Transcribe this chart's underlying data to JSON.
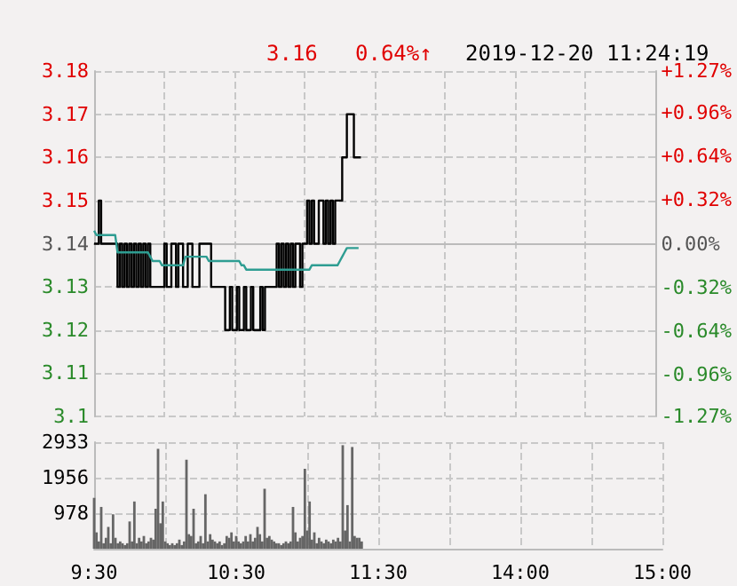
{
  "chart_data": [
    {
      "type": "line",
      "annotations": [
        "3.16",
        "0.64%↑",
        "2019-12-20 11:24:19"
      ],
      "categories": [
        null,
        null,
        null,
        null,
        null,
        null,
        null,
        null,
        null,
        null,
        null,
        null,
        null,
        null,
        null,
        null,
        null,
        null,
        null,
        null,
        null,
        null,
        null,
        null,
        null,
        null,
        null,
        null,
        null,
        null,
        null,
        null,
        null,
        null,
        null,
        null,
        null,
        null,
        null,
        null,
        null,
        null,
        null,
        null,
        null,
        null,
        null,
        null,
        null,
        null,
        null,
        null,
        null,
        null,
        null,
        null,
        null,
        null,
        null,
        null,
        null,
        null,
        null,
        null,
        null,
        null,
        null,
        null,
        null,
        null,
        null,
        null,
        null,
        null,
        null,
        null,
        null,
        null,
        null,
        null,
        null,
        null,
        null,
        null,
        null,
        null,
        null,
        null,
        null,
        null,
        null,
        null,
        null,
        null,
        null,
        null,
        null,
        null,
        null,
        null,
        null,
        null,
        null,
        null,
        null,
        null,
        null,
        null,
        null,
        null,
        null,
        null,
        null,
        null,
        null,
        null,
        null,
        null,
        null,
        null,
        null,
        null,
        null,
        null,
        null,
        null,
        null,
        null,
        null,
        null,
        null,
        null,
        null,
        null,
        null,
        null,
        null,
        null,
        null,
        null,
        null,
        null,
        null,
        null,
        null,
        null,
        null,
        null,
        null,
        null,
        null,
        null,
        null,
        null,
        null,
        null,
        null,
        null,
        null,
        null,
        null,
        null,
        null,
        null,
        null,
        null,
        null,
        null,
        null,
        null,
        null,
        null,
        null,
        null,
        null,
        null,
        null,
        null,
        null,
        null,
        null,
        null,
        null,
        null,
        null,
        null,
        null,
        null,
        null,
        null,
        null,
        null,
        null,
        null,
        null,
        null,
        null,
        null,
        null,
        null,
        null,
        null,
        null,
        null,
        null,
        null,
        null,
        null,
        null,
        null,
        null,
        null,
        null,
        null,
        null,
        null,
        null,
        null,
        null,
        null,
        null,
        null,
        null,
        null,
        null,
        null,
        null,
        null,
        null,
        null,
        null,
        null,
        null,
        null,
        null,
        null,
        null,
        null,
        null,
        null,
        null
      ],
      "series": [
        {
          "type": "step",
          "color": "#000000",
          "values": [
            3.14,
            3.14,
            3.15,
            3.14,
            3.14,
            3.14,
            3.14,
            3.14,
            3.14,
            3.14,
            3.13,
            3.14,
            3.13,
            3.14,
            3.13,
            3.14,
            3.13,
            3.14,
            3.13,
            3.14,
            3.13,
            3.14,
            3.13,
            3.14,
            3.13,
            3.13,
            3.13,
            3.13,
            3.13,
            3.13,
            3.14,
            3.13,
            3.13,
            3.14,
            3.14,
            3.13,
            3.14,
            3.14,
            3.13,
            3.13,
            3.14,
            3.14,
            3.13,
            3.13,
            3.13,
            3.14,
            3.14,
            3.14,
            3.14,
            3.14,
            3.13,
            3.13,
            3.13,
            3.13,
            3.13,
            3.13,
            3.12,
            3.12,
            3.13,
            3.12,
            3.12,
            3.13,
            3.12,
            3.12,
            3.13,
            3.12,
            3.12,
            3.13,
            3.12,
            3.12,
            3.12,
            3.13,
            3.12,
            3.13,
            3.13,
            3.13,
            3.13,
            3.13,
            3.14,
            3.13,
            3.14,
            3.13,
            3.14,
            3.13,
            3.14,
            3.13,
            3.14,
            3.14,
            3.13,
            3.14,
            3.14,
            3.15,
            3.14,
            3.15,
            3.14,
            3.14,
            3.15,
            3.15,
            3.14,
            3.15,
            3.14,
            3.15,
            3.14,
            3.15,
            3.15,
            3.15,
            3.16,
            3.16,
            3.17,
            3.17,
            3.17,
            3.16,
            3.16,
            3.16,
            null,
            null,
            null,
            null,
            null,
            null,
            null,
            null,
            null,
            null,
            null,
            null,
            null,
            null,
            null,
            null,
            null,
            null,
            null,
            null,
            null,
            null,
            null,
            null,
            null,
            null,
            null,
            null,
            null,
            null,
            null,
            null,
            null,
            null,
            null,
            null,
            null,
            null,
            null,
            null,
            null,
            null,
            null,
            null,
            null,
            null,
            null,
            null,
            null,
            null,
            null,
            null,
            null,
            null,
            null,
            null,
            null,
            null,
            null,
            null,
            null,
            null,
            null,
            null,
            null,
            null,
            null,
            null,
            null,
            null,
            null,
            null,
            null,
            null,
            null,
            null,
            null,
            null,
            null,
            null,
            null,
            null,
            null,
            null,
            null,
            null,
            null,
            null,
            null,
            null,
            null,
            null,
            null,
            null,
            null,
            null,
            null,
            null,
            null,
            null,
            null,
            null,
            null,
            null,
            null,
            null,
            null,
            null,
            null,
            null,
            null,
            null,
            null,
            null,
            null,
            null,
            null,
            null,
            null,
            null,
            null,
            null,
            null,
            null,
            null,
            null,
            null
          ]
        },
        {
          "color": "#2e9d92",
          "values": [
            3.143,
            3.142,
            3.142,
            3.142,
            3.142,
            3.142,
            3.142,
            3.142,
            3.142,
            3.142,
            3.138,
            3.138,
            3.138,
            3.138,
            3.138,
            3.138,
            3.138,
            3.138,
            3.138,
            3.138,
            3.138,
            3.138,
            3.138,
            3.138,
            3.137,
            3.136,
            3.136,
            3.136,
            3.136,
            3.135,
            3.135,
            3.135,
            3.135,
            3.135,
            3.135,
            3.135,
            3.135,
            3.135,
            3.135,
            3.137,
            3.137,
            3.137,
            3.137,
            3.137,
            3.137,
            3.137,
            3.137,
            3.137,
            3.137,
            3.136,
            3.136,
            3.136,
            3.136,
            3.136,
            3.136,
            3.136,
            3.136,
            3.136,
            3.136,
            3.136,
            3.136,
            3.136,
            3.136,
            3.135,
            3.135,
            3.134,
            3.134,
            3.134,
            3.134,
            3.134,
            3.134,
            3.134,
            3.134,
            3.134,
            3.134,
            3.134,
            3.134,
            3.134,
            3.134,
            3.134,
            3.134,
            3.134,
            3.134,
            3.134,
            3.134,
            3.134,
            3.134,
            3.134,
            3.134,
            3.134,
            3.134,
            3.134,
            3.134,
            3.135,
            3.135,
            3.135,
            3.135,
            3.135,
            3.135,
            3.135,
            3.135,
            3.135,
            3.135,
            3.135,
            3.135,
            3.136,
            3.137,
            3.138,
            3.139,
            3.139,
            3.139,
            3.139,
            3.139,
            3.139,
            null,
            null,
            null,
            null,
            null,
            null,
            null,
            null,
            null,
            null,
            null,
            null,
            null,
            null,
            null,
            null,
            null,
            null,
            null,
            null,
            null,
            null,
            null,
            null,
            null,
            null,
            null,
            null,
            null,
            null,
            null,
            null,
            null,
            null,
            null,
            null,
            null,
            null,
            null,
            null,
            null,
            null,
            null,
            null,
            null,
            null,
            null,
            null,
            null,
            null,
            null,
            null,
            null,
            null,
            null,
            null,
            null,
            null,
            null,
            null,
            null,
            null,
            null,
            null,
            null,
            null,
            null,
            null,
            null,
            null,
            null,
            null,
            null,
            null,
            null,
            null,
            null,
            null,
            null,
            null,
            null,
            null,
            null,
            null,
            null,
            null,
            null,
            null,
            null,
            null,
            null,
            null,
            null,
            null,
            null,
            null,
            null,
            null,
            null,
            null,
            null,
            null,
            null,
            null,
            null,
            null,
            null,
            null,
            null,
            null,
            null,
            null,
            null,
            null,
            null,
            null,
            null,
            null,
            null,
            null,
            null,
            null,
            null,
            null,
            null,
            null,
            null
          ]
        }
      ],
      "ylim": [
        3.1,
        3.18
      ],
      "yticks": [
        3.1,
        3.11,
        3.12,
        3.13,
        3.14,
        3.15,
        3.16,
        3.17,
        3.18
      ],
      "y2lim": [
        -1.27,
        1.27
      ],
      "y2ticks": [
        {
          "value": -1.27,
          "label": "-1.27%"
        },
        {
          "value": -0.96,
          "label": "-0.96%"
        },
        {
          "value": -0.64,
          "label": "-0.64%"
        },
        {
          "value": -0.32,
          "label": "-0.32%"
        },
        {
          "value": 0,
          "label": "0.00%"
        },
        {
          "value": 0.32,
          "label": "+0.32%"
        },
        {
          "value": 0.64,
          "label": "+0.64%"
        },
        {
          "value": 0.96,
          "label": "+0.96%"
        },
        {
          "value": 1.27,
          "label": "+1.27%"
        }
      ],
      "tick_labels": "y",
      "grid": true
    },
    {
      "type": "bar",
      "color": "#666666",
      "categories": [
        "9:30",
        null,
        null,
        null,
        null,
        null,
        null,
        null,
        null,
        null,
        null,
        null,
        null,
        null,
        null,
        null,
        null,
        null,
        null,
        null,
        null,
        null,
        null,
        null,
        null,
        null,
        null,
        null,
        null,
        null,
        null,
        null,
        null,
        null,
        null,
        null,
        null,
        null,
        null,
        null,
        null,
        null,
        null,
        null,
        null,
        null,
        null,
        null,
        null,
        null,
        null,
        null,
        null,
        null,
        null,
        null,
        null,
        null,
        null,
        null,
        "10:30",
        null,
        null,
        null,
        null,
        null,
        null,
        null,
        null,
        null,
        null,
        null,
        null,
        null,
        null,
        null,
        null,
        null,
        null,
        null,
        null,
        null,
        null,
        null,
        null,
        null,
        null,
        null,
        null,
        null,
        null,
        null,
        null,
        null,
        null,
        null,
        null,
        null,
        null,
        null,
        null,
        null,
        null,
        null,
        null,
        null,
        null,
        null,
        null,
        null,
        null,
        null,
        null,
        null,
        null,
        null,
        null,
        null,
        null,
        null,
        "11:30",
        null,
        null,
        null,
        null,
        null,
        null,
        null,
        null,
        null,
        null,
        null,
        null,
        null,
        null,
        null,
        null,
        null,
        null,
        null,
        null,
        null,
        null,
        null,
        null,
        null,
        null,
        null,
        null,
        null,
        null,
        null,
        null,
        null,
        null,
        null,
        null,
        null,
        null,
        null,
        null,
        null,
        null,
        null,
        null,
        null,
        null,
        null,
        null,
        null,
        null,
        null,
        null,
        null,
        null,
        null,
        null,
        null,
        null,
        null,
        "14:00",
        null,
        null,
        null,
        null,
        null,
        null,
        null,
        null,
        null,
        null,
        null,
        null,
        null,
        null,
        null,
        null,
        null,
        null,
        null,
        null,
        null,
        null,
        null,
        null,
        null,
        null,
        null,
        null,
        null,
        null,
        null,
        null,
        null,
        null,
        null,
        null,
        null,
        null,
        null,
        null,
        null,
        null,
        null,
        null,
        null,
        null,
        null,
        null,
        null,
        null,
        null,
        null,
        null,
        null,
        null,
        null,
        null,
        null,
        null,
        "15:00"
      ],
      "values": [
        1400,
        450,
        200,
        1150,
        150,
        300,
        600,
        150,
        950,
        300,
        150,
        200,
        150,
        100,
        150,
        750,
        200,
        1300,
        150,
        300,
        200,
        350,
        150,
        200,
        300,
        250,
        1100,
        2750,
        700,
        1300,
        200,
        150,
        100,
        150,
        100,
        150,
        250,
        100,
        200,
        2450,
        400,
        350,
        1100,
        150,
        200,
        350,
        150,
        1500,
        200,
        400,
        250,
        200,
        150,
        200,
        100,
        150,
        350,
        300,
        450,
        200,
        350,
        200,
        150,
        200,
        350,
        200,
        400,
        200,
        300,
        600,
        400,
        200,
        1650,
        300,
        350,
        250,
        200,
        150,
        150,
        100,
        150,
        200,
        150,
        200,
        1150,
        450,
        200,
        300,
        350,
        2200,
        500,
        1300,
        250,
        450,
        150,
        300,
        200,
        150,
        250,
        200,
        150,
        250,
        200,
        300,
        200,
        2850,
        500,
        1200,
        200,
        2800,
        350,
        300,
        300,
        200,
        null,
        null,
        null,
        null,
        null,
        null,
        null,
        null,
        null,
        null,
        null,
        null,
        null,
        null,
        null,
        null,
        null,
        null,
        null,
        null,
        null,
        null,
        null,
        null,
        null,
        null,
        null,
        null,
        null,
        null,
        null,
        null,
        null,
        null,
        null,
        null,
        null,
        null,
        null,
        null,
        null,
        null,
        null,
        null,
        null,
        null,
        null,
        null,
        null,
        null,
        null,
        null,
        null,
        null,
        null,
        null,
        null,
        null,
        null,
        null,
        null,
        null,
        null,
        null,
        null,
        null,
        null,
        null,
        null,
        null,
        null,
        null,
        null,
        null,
        null,
        null,
        null,
        null,
        null,
        null,
        null,
        null,
        null,
        null,
        null,
        null,
        null,
        null,
        null,
        null,
        null,
        null,
        null,
        null,
        null,
        null,
        null,
        null,
        null,
        null,
        null,
        null,
        null,
        null,
        null,
        null,
        null,
        null,
        null,
        null,
        null,
        null,
        null,
        null,
        null,
        null,
        null,
        null,
        null,
        null,
        null,
        null,
        null,
        null,
        null,
        null,
        null
      ],
      "ylim": [
        0,
        2933
      ],
      "yticks": [
        978,
        1956,
        2933
      ],
      "grid": true
    }
  ]
}
